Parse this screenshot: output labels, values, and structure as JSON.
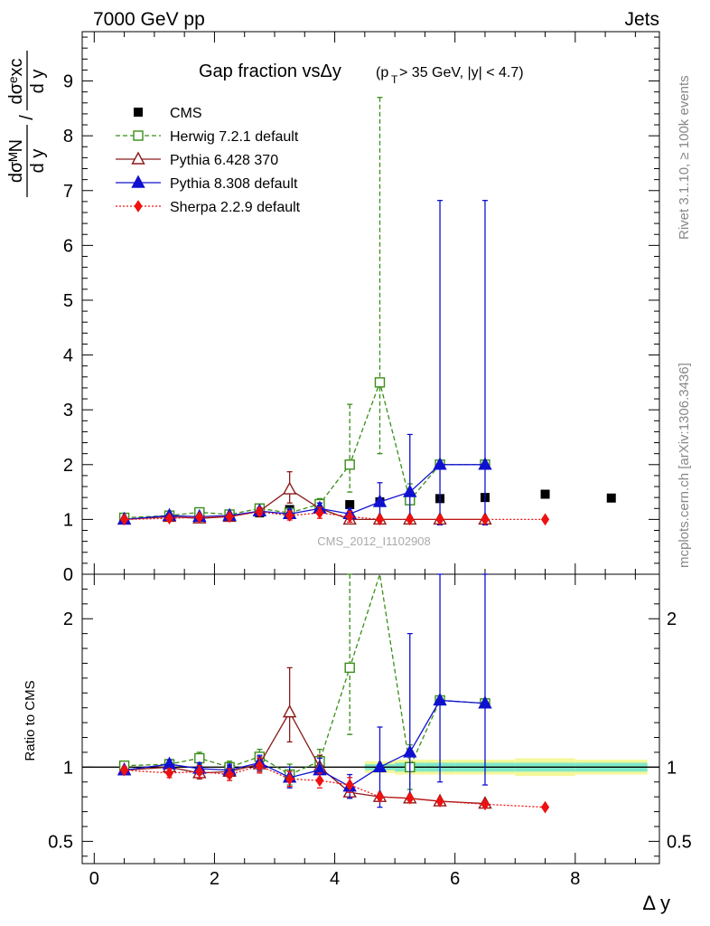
{
  "header": {
    "left": "7000 GeV pp",
    "right": "Jets"
  },
  "side_text": {
    "rivet": "Rivet 3.1.10, ≥ 100k events",
    "mcplots": "mcplots.cern.ch [arXiv:1306.3436]"
  },
  "chart_data": {
    "type": "scatter",
    "title": {
      "main": "Gap fraction vsΔy",
      "cond_open": "(p",
      "cond_sub": "T",
      "cond_rest": " > 35 GeV, |y| < 4.7)"
    },
    "watermark": "CMS_2012_I1102908",
    "xlabel": "Δ y",
    "ylabel_main": {
      "num": "dσᴹN",
      "den": "d y",
      "slash": "/",
      "num2": "dσᵉxc",
      "den2": "d y"
    },
    "ylabel_ratio": "Ratio to CMS",
    "xlim": [
      -0.2,
      9.4
    ],
    "ylim_main": [
      0,
      9.9
    ],
    "ylim_ratio": [
      0.35,
      2.3
    ],
    "xticks": [
      0,
      2,
      4,
      6,
      8
    ],
    "yticks_main": [
      0,
      1,
      2,
      3,
      4,
      5,
      6,
      7,
      8,
      9
    ],
    "yticks_ratio": [
      0.5,
      1,
      2
    ],
    "yticks_ratio_right": [
      0.5,
      1,
      2
    ],
    "legend_position": "top-left",
    "series": [
      {
        "name": "CMS",
        "style": "data",
        "color": "#000000",
        "x": [
          0.5,
          1.25,
          1.75,
          2.25,
          2.75,
          3.25,
          3.75,
          4.25,
          4.75,
          5.25,
          5.75,
          6.5,
          7.5,
          8.6
        ],
        "y": [
          1.02,
          1.05,
          1.07,
          1.09,
          1.12,
          1.18,
          1.23,
          1.27,
          1.32,
          1.35,
          1.38,
          1.4,
          1.46,
          1.39
        ]
      },
      {
        "name": "Herwig 7.2.1 default",
        "style": "dashed",
        "color": "#3a8e18",
        "marker": "open-square",
        "x": [
          0.5,
          1.25,
          1.75,
          2.25,
          2.75,
          3.25,
          3.75,
          4.25,
          4.75,
          5.25,
          5.75,
          6.5
        ],
        "y": [
          1.03,
          1.07,
          1.13,
          1.09,
          1.2,
          1.12,
          1.28,
          2.0,
          3.5,
          1.35,
          2.0,
          2.0
        ],
        "err_lo": [
          0.03,
          0.03,
          0.04,
          0.04,
          0.06,
          0.08,
          0.1,
          0.5,
          1.3,
          0.3,
          0.0,
          0.0
        ],
        "err_hi": [
          0.03,
          0.03,
          0.04,
          0.04,
          0.06,
          0.08,
          0.1,
          1.1,
          5.2,
          0.3,
          0.0,
          0.0
        ],
        "ratio": [
          1.01,
          1.02,
          1.06,
          1.0,
          1.07,
          0.95,
          1.04,
          1.67,
          2.35,
          1.0,
          1.45,
          1.43
        ],
        "ratio_err_lo": [
          0.02,
          0.03,
          0.04,
          0.04,
          0.05,
          0.07,
          0.08,
          0.45,
          0.0,
          0.15,
          0.0,
          0.0
        ],
        "ratio_err_hi": [
          0.02,
          0.03,
          0.04,
          0.04,
          0.05,
          0.07,
          0.08,
          0.7,
          0.0,
          0.15,
          0.0,
          0.0
        ]
      },
      {
        "name": "Pythia 6.428 370",
        "style": "solid",
        "color": "#8b1a1a",
        "marker": "open-triangle",
        "x": [
          0.5,
          1.25,
          1.75,
          2.25,
          2.75,
          3.25,
          3.75,
          4.25,
          4.75,
          5.25,
          5.75,
          6.5
        ],
        "y": [
          1.0,
          1.05,
          1.02,
          1.05,
          1.15,
          1.55,
          1.2,
          1.0,
          1.0,
          1.0,
          1.0,
          1.0
        ],
        "err_lo": [
          0.03,
          0.03,
          0.04,
          0.04,
          0.06,
          0.25,
          0.1,
          0.05,
          0.0,
          0.0,
          0.0,
          0.0
        ],
        "err_hi": [
          0.03,
          0.03,
          0.04,
          0.04,
          0.06,
          0.32,
          0.1,
          0.05,
          0.0,
          0.0,
          0.0,
          0.0
        ],
        "ratio": [
          0.98,
          1.0,
          0.96,
          0.97,
          1.02,
          1.37,
          1.0,
          0.83,
          0.8,
          0.79,
          0.77,
          0.755
        ],
        "ratio_err_lo": [
          0.02,
          0.03,
          0.04,
          0.04,
          0.05,
          0.2,
          0.08,
          0.04,
          0.0,
          0.0,
          0.0,
          0.0
        ],
        "ratio_err_hi": [
          0.02,
          0.03,
          0.04,
          0.04,
          0.05,
          0.3,
          0.08,
          0.04,
          0.0,
          0.0,
          0.0,
          0.0
        ]
      },
      {
        "name": "Pythia 8.308 default",
        "style": "solid",
        "color": "#1010d0",
        "marker": "filled-triangle",
        "x": [
          0.5,
          1.25,
          1.75,
          2.25,
          2.75,
          3.25,
          3.75,
          4.25,
          4.75,
          5.25,
          5.75,
          6.5
        ],
        "y": [
          1.0,
          1.07,
          1.05,
          1.07,
          1.15,
          1.1,
          1.2,
          1.1,
          1.32,
          1.5,
          2.0,
          2.0
        ],
        "err_lo": [
          0.03,
          0.03,
          0.04,
          0.04,
          0.06,
          0.08,
          0.1,
          0.1,
          0.35,
          0.5,
          1.1,
          1.1
        ],
        "err_hi": [
          0.03,
          0.03,
          0.04,
          0.04,
          0.06,
          0.08,
          0.1,
          0.1,
          0.35,
          1.05,
          4.82,
          4.82
        ],
        "ratio": [
          0.98,
          1.02,
          0.99,
          0.98,
          1.03,
          0.93,
          0.98,
          0.87,
          1.0,
          1.1,
          1.45,
          1.43
        ],
        "ratio_err_lo": [
          0.02,
          0.03,
          0.04,
          0.04,
          0.05,
          0.07,
          0.08,
          0.08,
          0.27,
          0.3,
          0.55,
          0.55
        ],
        "ratio_err_hi": [
          0.02,
          0.03,
          0.04,
          0.04,
          0.05,
          0.07,
          0.08,
          0.08,
          0.27,
          0.8,
          1.2,
          1.2
        ]
      },
      {
        "name": "Sherpa 2.2.9 default",
        "style": "dotted",
        "color": "#ee1111",
        "marker": "filled-diamond",
        "x": [
          0.5,
          1.25,
          1.75,
          2.25,
          2.75,
          3.25,
          3.75,
          4.25,
          4.75,
          5.25,
          5.75,
          6.5,
          7.5
        ],
        "y": [
          1.0,
          1.02,
          1.04,
          1.05,
          1.14,
          1.07,
          1.12,
          1.05,
          1.0,
          1.0,
          1.0,
          1.0,
          1.0
        ],
        "err_lo": [
          0.03,
          0.03,
          0.04,
          0.04,
          0.06,
          0.08,
          0.1,
          0.1,
          0.0,
          0.0,
          0.0,
          0.0,
          0.0
        ],
        "err_hi": [
          0.03,
          0.03,
          0.04,
          0.04,
          0.06,
          0.08,
          0.1,
          0.1,
          0.0,
          0.0,
          0.0,
          0.0,
          0.0
        ],
        "ratio": [
          0.98,
          0.96,
          0.97,
          0.95,
          1.01,
          0.92,
          0.91,
          0.88,
          0.8,
          0.79,
          0.77,
          0.75,
          0.73
        ],
        "ratio_err_lo": [
          0.02,
          0.03,
          0.04,
          0.04,
          0.05,
          0.05,
          0.05,
          0.05,
          0.0,
          0.0,
          0.0,
          0.0,
          0.0
        ],
        "ratio_err_hi": [
          0.02,
          0.03,
          0.04,
          0.04,
          0.05,
          0.05,
          0.05,
          0.05,
          0.0,
          0.0,
          0.0,
          0.0,
          0.0
        ]
      }
    ],
    "ratio_band": {
      "x_edges": [
        4.5,
        5.0,
        5.5,
        6.0,
        7.0,
        8.0,
        9.2
      ],
      "inner": [
        0.02,
        0.03,
        0.03,
        0.03,
        0.03,
        0.03
      ],
      "outer": [
        0.04,
        0.05,
        0.05,
        0.05,
        0.06,
        0.05
      ],
      "inner_color": "#7fe8c8",
      "outer_color": "#f4f79a"
    }
  }
}
